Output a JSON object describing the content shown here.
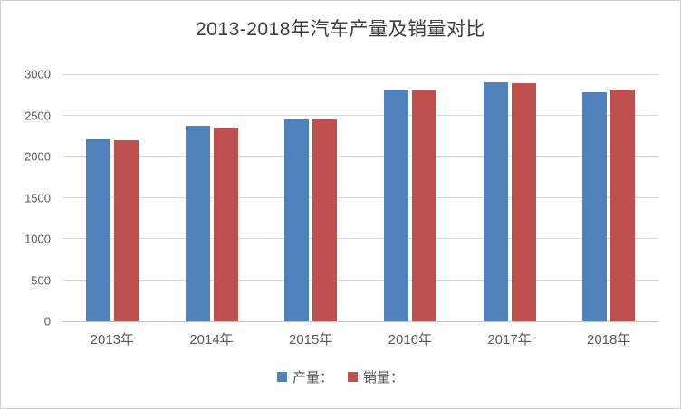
{
  "window": {
    "background": "#ffffff",
    "border_color": "#cfcfcf"
  },
  "chart_data": {
    "type": "bar",
    "title": "2013-2018年汽车产量及销量对比",
    "categories": [
      "2013年",
      "2014年",
      "2015年",
      "2016年",
      "2017年",
      "2018年"
    ],
    "series": [
      {
        "key": "production",
        "name": "产量",
        "legend_label": "产量：",
        "color": "#4f81bd",
        "values": [
          2212,
          2372,
          2450,
          2812,
          2902,
          2781
        ]
      },
      {
        "key": "sales",
        "name": "销量",
        "legend_label": "销量：",
        "color": "#c0504d",
        "values": [
          2198,
          2349,
          2460,
          2803,
          2888,
          2808
        ]
      }
    ],
    "xlabel": "",
    "ylabel": "",
    "ylim": [
      0,
      3000
    ],
    "yticks": [
      3000,
      2500,
      2000,
      1500,
      1000,
      500,
      0
    ],
    "grid": true,
    "legend_position": "bottom",
    "gridline_color": "#d9d9d9",
    "axis_label_color": "#595959",
    "title_color": "#3d3d3d"
  }
}
